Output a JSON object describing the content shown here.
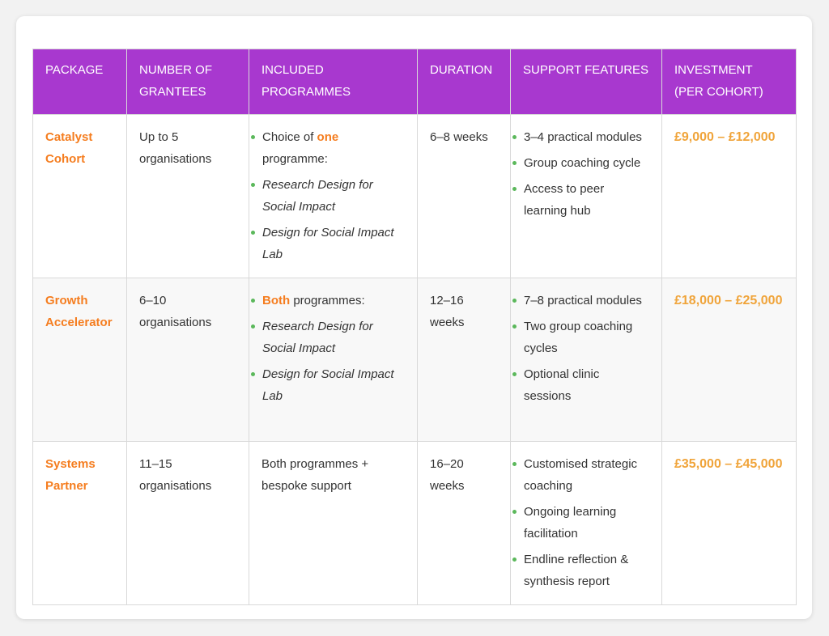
{
  "colors": {
    "header_bg": "#a838cf",
    "package_name": "#f57d1f",
    "investment": "#f0a43a",
    "bullet": "#5bb85b"
  },
  "headers": [
    "Package",
    "Number of Grantees",
    "Included Programmes",
    "Duration",
    "Support Features",
    "Investment (per cohort)"
  ],
  "rows": [
    {
      "package": "Catalyst Cohort",
      "grantees": "Up to 5 organisations",
      "programmes": {
        "pre": "Choice of ",
        "hl": "one",
        "post": " programme:",
        "items": [
          "Research Design for Social Impact",
          "Design for Social Impact Lab"
        ]
      },
      "duration": "6–8 weeks",
      "support": [
        "3–4 practical modules",
        "Group coaching cycle",
        "Access to peer learning hub"
      ],
      "investment": "£9,000 – £12,000"
    },
    {
      "package": "Growth Accelerator",
      "grantees": "6–10 organisations",
      "programmes": {
        "pre": "",
        "hl": "Both",
        "post": " programmes:",
        "items": [
          "Research Design for Social Impact",
          "Design for Social Impact Lab"
        ]
      },
      "duration": "12–16 weeks",
      "support": [
        "7–8 practical modules",
        "Two group coaching cycles",
        "Optional clinic sessions"
      ],
      "investment": "£18,000 – £25,000"
    },
    {
      "package": "Systems Partner",
      "grantees": "11–15 organisations",
      "programmes_text": "Both programmes + bespoke support",
      "duration": "16–20 weeks",
      "support": [
        "Customised strategic coaching",
        "Ongoing learning facilitation",
        "Endline reflection & synthesis report"
      ],
      "investment": "£35,000 – £45,000"
    }
  ]
}
